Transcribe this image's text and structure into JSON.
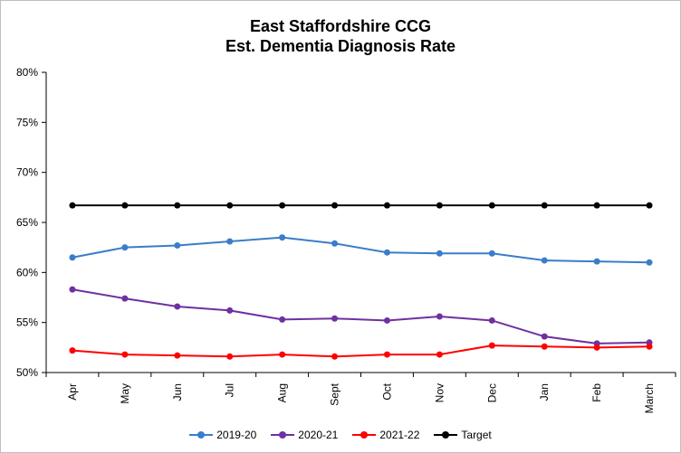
{
  "chart_data": {
    "type": "line",
    "title_lines": [
      "East Staffordshire CCG",
      "Est. Dementia Diagnosis Rate"
    ],
    "categories": [
      "Apr",
      "May",
      "Jun",
      "Jul",
      "Aug",
      "Sept",
      "Oct",
      "Nov",
      "Dec",
      "Jan",
      "Feb",
      "March"
    ],
    "ylim": [
      50,
      80
    ],
    "yticks": [
      50,
      55,
      60,
      65,
      70,
      75,
      80
    ],
    "ytick_labels": [
      "50%",
      "55%",
      "60%",
      "65%",
      "70%",
      "75%",
      "80%"
    ],
    "grid": false,
    "legend_position": "bottom",
    "series": [
      {
        "name": "2019-20",
        "color": "#3a7dc9",
        "values": [
          61.5,
          62.5,
          62.7,
          63.1,
          63.5,
          62.9,
          62.0,
          61.9,
          61.9,
          61.2,
          61.1,
          61.0
        ]
      },
      {
        "name": "2020-21",
        "color": "#7030a0",
        "values": [
          58.3,
          57.4,
          56.6,
          56.2,
          55.3,
          55.4,
          55.2,
          55.6,
          55.2,
          53.6,
          52.9,
          53.0
        ]
      },
      {
        "name": "2021-22",
        "color": "#ff0000",
        "values": [
          52.2,
          51.8,
          51.7,
          51.6,
          51.8,
          51.6,
          51.8,
          51.8,
          52.7,
          52.6,
          52.5,
          52.6
        ]
      },
      {
        "name": "Target",
        "color": "#000000",
        "values": [
          66.7,
          66.7,
          66.7,
          66.7,
          66.7,
          66.7,
          66.7,
          66.7,
          66.7,
          66.7,
          66.7,
          66.7
        ]
      }
    ]
  }
}
